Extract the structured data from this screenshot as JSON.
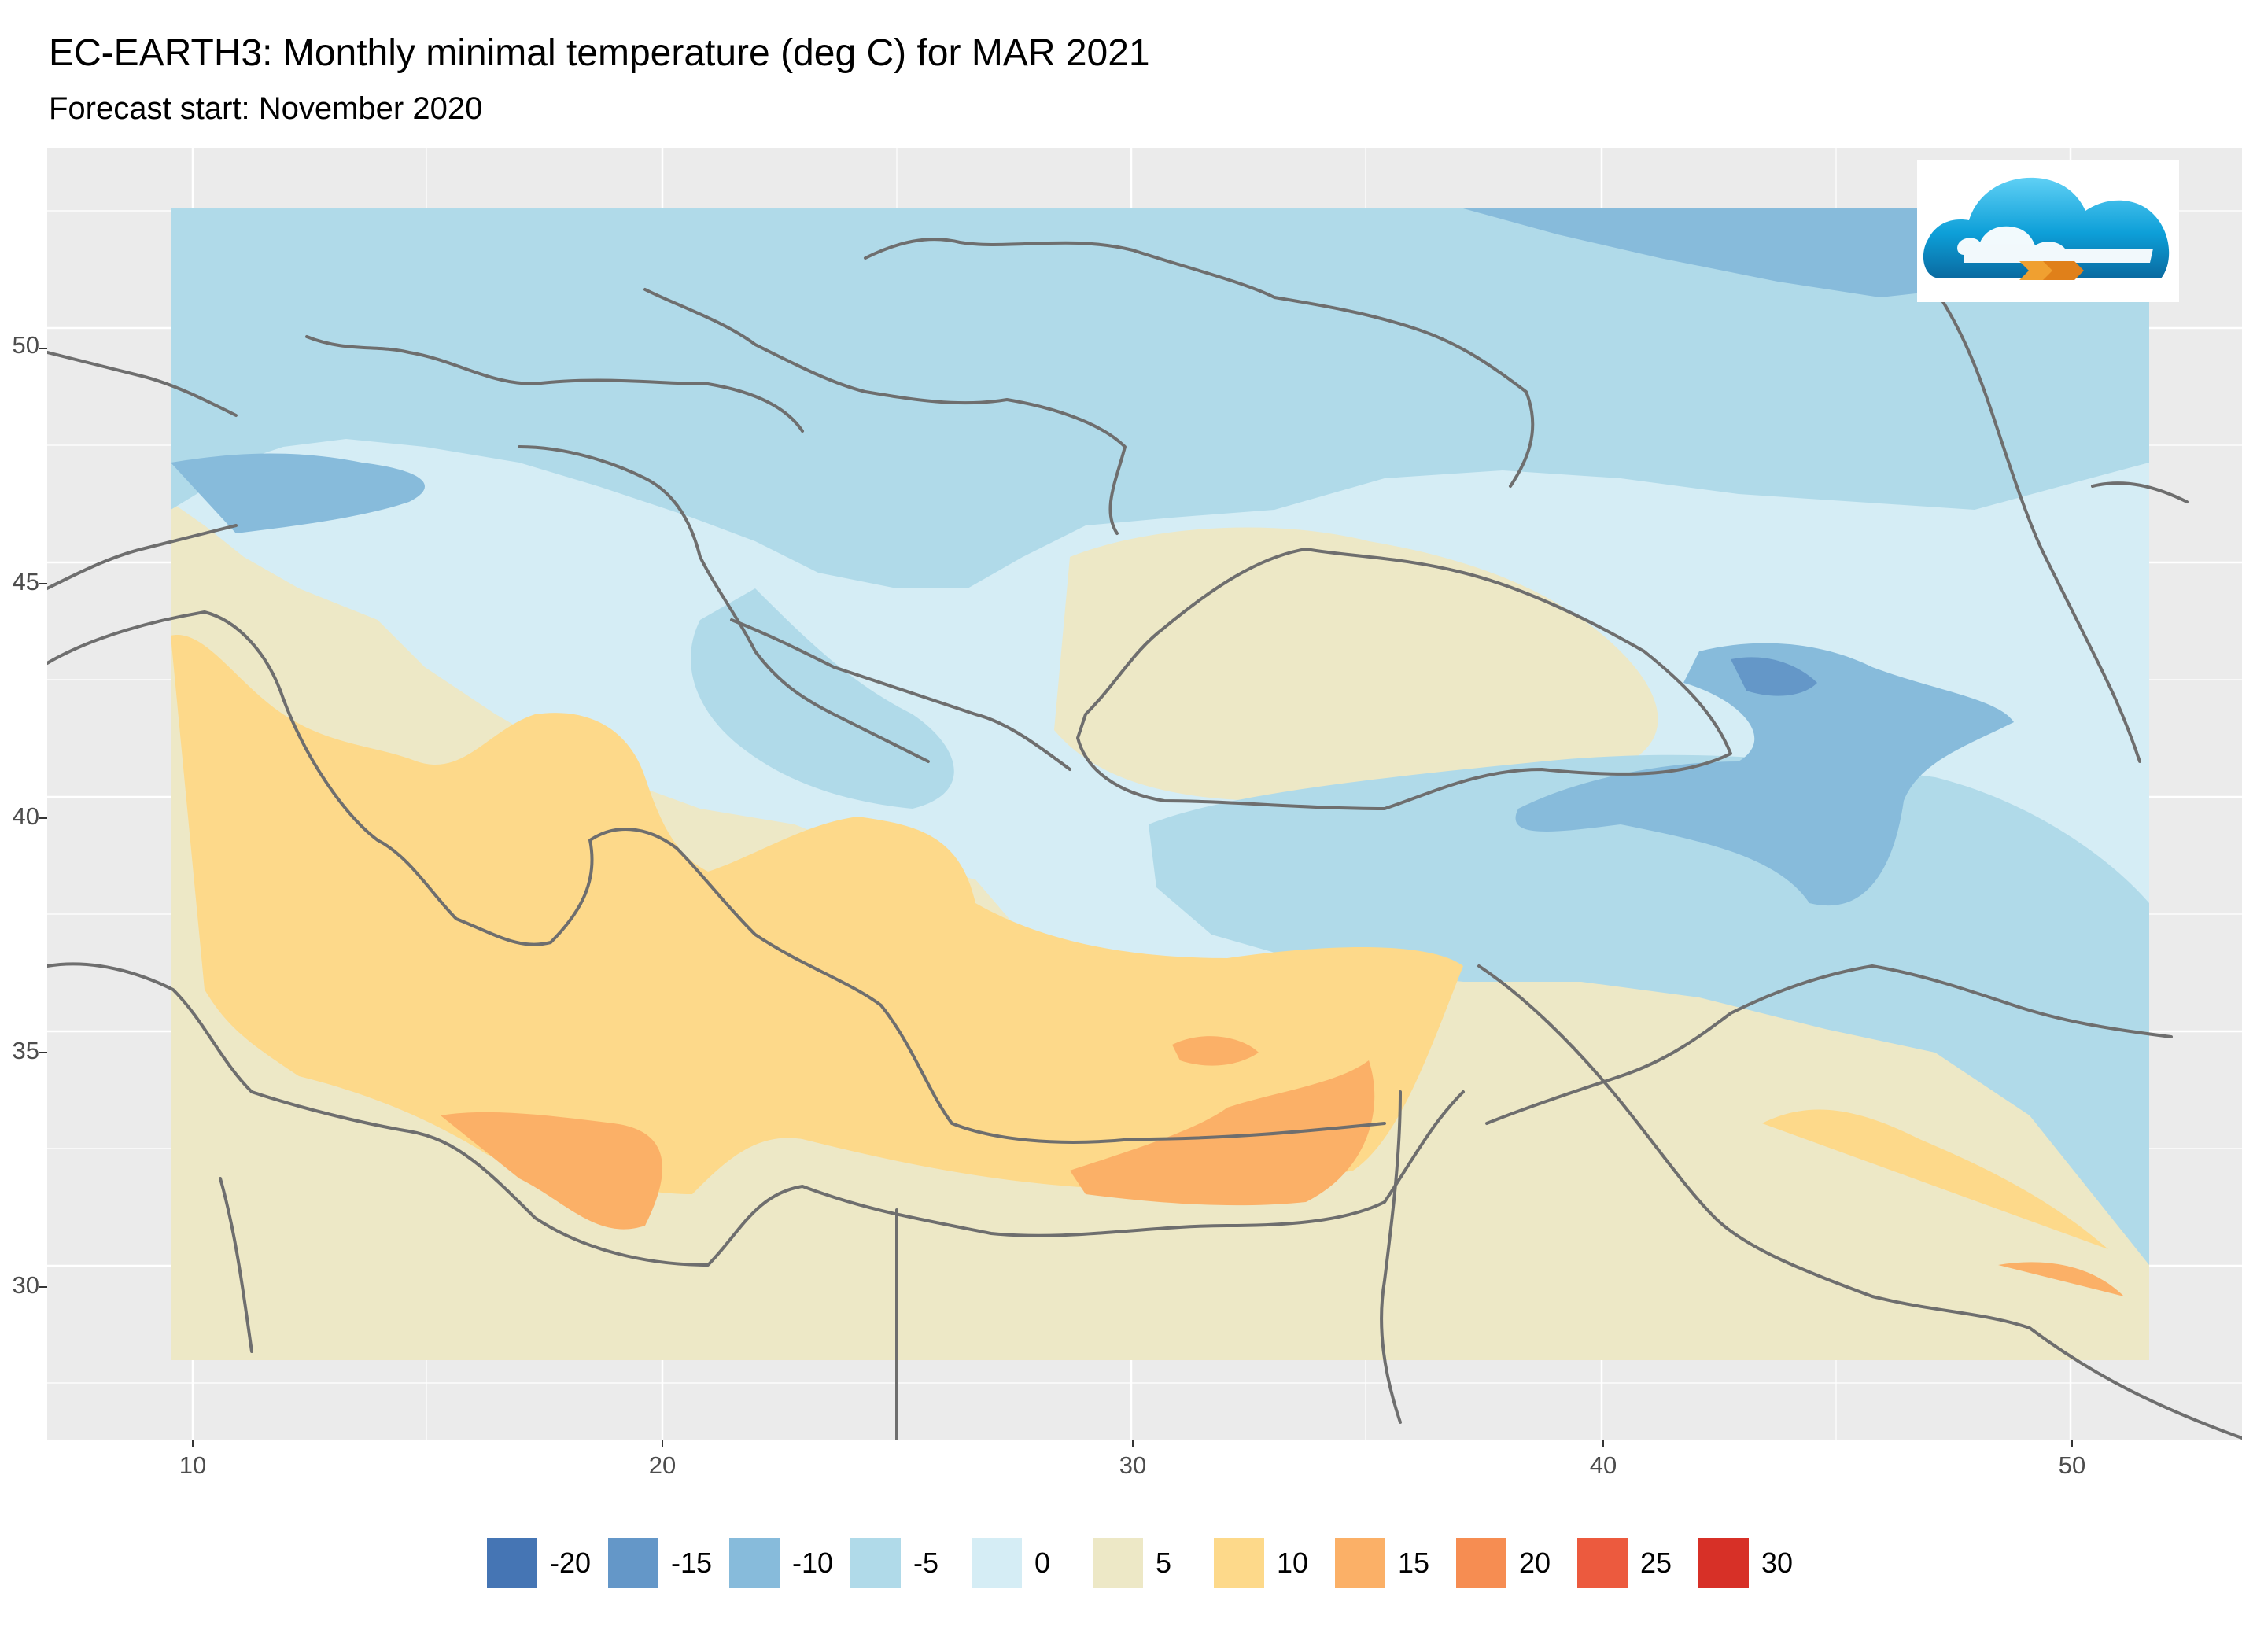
{
  "header": {
    "title": "EC-EARTH3: Monthly minimal temperature (deg C) for MAR 2021",
    "subtitle": "Forecast start: November 2020"
  },
  "map": {
    "region": "Mediterranean / Black Sea / Middle East",
    "variable": "Monthly minimal temperature",
    "units": "deg C",
    "lon_range": [
      7,
      54
    ],
    "lat_range": [
      27,
      54
    ],
    "x_ticks": [
      "10",
      "20",
      "30",
      "40",
      "50"
    ],
    "y_ticks": [
      "50",
      "45",
      "40",
      "35",
      "30"
    ],
    "colors": {
      "panel_background": "#ebebeb",
      "grid": "#ffffff",
      "borders": "#6e6e6e"
    },
    "logo": "cloud-arrow-logo"
  },
  "legend": {
    "items": [
      {
        "label": "-20",
        "color": "#4575b4"
      },
      {
        "label": "-15",
        "color": "#6497c8"
      },
      {
        "label": "-10",
        "color": "#87bbdb"
      },
      {
        "label": "-5",
        "color": "#b0dae9"
      },
      {
        "label": "0",
        "color": "#d5edf5"
      },
      {
        "label": "5",
        "color": "#ede8c6"
      },
      {
        "label": "10",
        "color": "#fdd98a"
      },
      {
        "label": "15",
        "color": "#fbb067"
      },
      {
        "label": "20",
        "color": "#f68d52"
      },
      {
        "label": "25",
        "color": "#ec5a3e"
      },
      {
        "label": "30",
        "color": "#d73027"
      }
    ]
  }
}
